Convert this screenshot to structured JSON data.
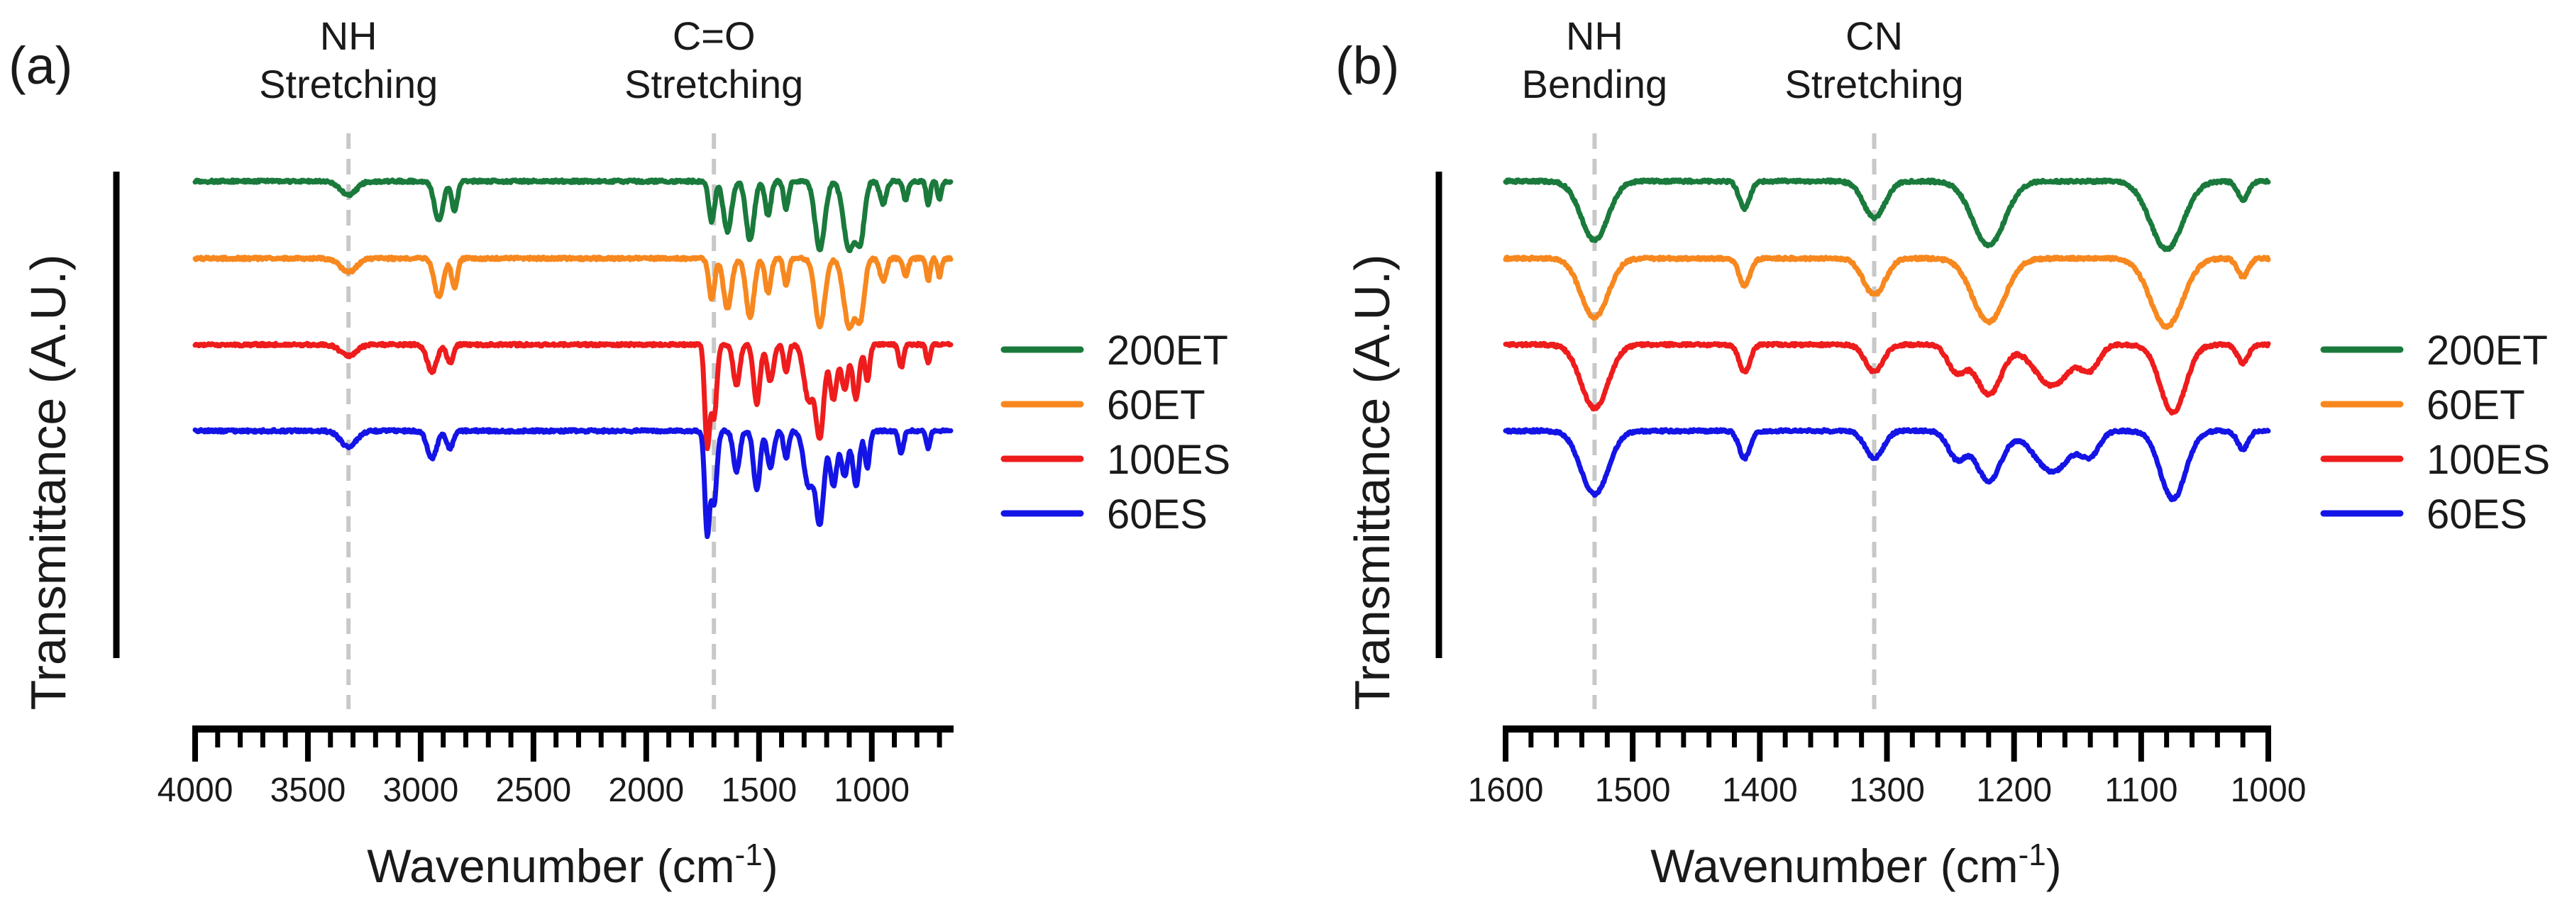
{
  "chart_data": [
    {
      "type": "line",
      "panel_label": "(a)",
      "xlabel_main": "Wavenumber (cm",
      "xlabel_sup": "-1",
      "xlabel_end": ")",
      "ylabel": "Transmittance (A.U.)",
      "xlim": [
        4000,
        650
      ],
      "x_reversed": true,
      "major_ticks": [
        4000,
        3500,
        3000,
        2500,
        2000,
        1500,
        1000
      ],
      "major_tick_labels": [
        "4000",
        "3500",
        "3000",
        "2500",
        "2000",
        "1500",
        "1000"
      ],
      "minor_tick_step": 100,
      "grid": false,
      "annotations": [
        {
          "x": 3320,
          "line1": "NH",
          "line2": "Stretching"
        },
        {
          "x": 1700,
          "line1": "C=O",
          "line2": "Stretching"
        }
      ],
      "legend_position": "right",
      "series": [
        {
          "name": "200ET",
          "color": "#1a7a3c",
          "baseline": 0.04,
          "feature_scale": 1.0,
          "features": [
            [
              3320,
              0.03,
              50
            ],
            [
              2920,
              0.085,
              28
            ],
            [
              2850,
              0.065,
              18
            ],
            [
              1710,
              0.09,
              18
            ],
            [
              1640,
              0.11,
              25
            ],
            [
              1540,
              0.13,
              25
            ],
            [
              1460,
              0.075,
              18
            ],
            [
              1380,
              0.06,
              15
            ],
            [
              1230,
              0.15,
              30
            ],
            [
              1100,
              0.15,
              35
            ],
            [
              1050,
              0.12,
              25
            ],
            [
              950,
              0.05,
              20
            ],
            [
              850,
              0.04,
              15
            ],
            [
              750,
              0.05,
              12
            ],
            [
              700,
              0.04,
              12
            ]
          ]
        },
        {
          "name": "60ET",
          "color": "#f7881f",
          "baseline": 0.21,
          "feature_scale": 1.0,
          "features": [
            [
              3320,
              0.03,
              50
            ],
            [
              2920,
              0.085,
              28
            ],
            [
              2850,
              0.065,
              18
            ],
            [
              1710,
              0.09,
              18
            ],
            [
              1640,
              0.11,
              25
            ],
            [
              1540,
              0.13,
              25
            ],
            [
              1460,
              0.075,
              18
            ],
            [
              1380,
              0.06,
              15
            ],
            [
              1230,
              0.15,
              30
            ],
            [
              1100,
              0.15,
              35
            ],
            [
              1050,
              0.12,
              25
            ],
            [
              950,
              0.05,
              20
            ],
            [
              850,
              0.04,
              15
            ],
            [
              750,
              0.05,
              12
            ],
            [
              700,
              0.04,
              12
            ]
          ]
        },
        {
          "name": "100ES",
          "color": "#ee1c1c",
          "baseline": 0.4,
          "feature_scale": 1.0,
          "features": [
            [
              3320,
              0.025,
              50
            ],
            [
              2950,
              0.06,
              30
            ],
            [
              2870,
              0.04,
              20
            ],
            [
              1730,
              0.22,
              15
            ],
            [
              1700,
              0.16,
              18
            ],
            [
              1600,
              0.09,
              20
            ],
            [
              1510,
              0.13,
              20
            ],
            [
              1450,
              0.08,
              20
            ],
            [
              1380,
              0.06,
              15
            ],
            [
              1280,
              0.12,
              30
            ],
            [
              1230,
              0.2,
              25
            ],
            [
              1170,
              0.12,
              22
            ],
            [
              1120,
              0.1,
              20
            ],
            [
              1070,
              0.12,
              20
            ],
            [
              1020,
              0.08,
              15
            ],
            [
              870,
              0.05,
              15
            ],
            [
              750,
              0.04,
              12
            ]
          ]
        },
        {
          "name": "60ES",
          "color": "#1414e6",
          "baseline": 0.59,
          "feature_scale": 1.0,
          "features": [
            [
              3320,
              0.035,
              50
            ],
            [
              2950,
              0.06,
              30
            ],
            [
              2870,
              0.04,
              20
            ],
            [
              1730,
              0.22,
              15
            ],
            [
              1700,
              0.16,
              18
            ],
            [
              1600,
              0.09,
              20
            ],
            [
              1510,
              0.13,
              20
            ],
            [
              1450,
              0.08,
              20
            ],
            [
              1380,
              0.06,
              15
            ],
            [
              1280,
              0.12,
              30
            ],
            [
              1230,
              0.2,
              25
            ],
            [
              1170,
              0.12,
              22
            ],
            [
              1120,
              0.1,
              20
            ],
            [
              1070,
              0.12,
              20
            ],
            [
              1020,
              0.08,
              15
            ],
            [
              870,
              0.05,
              15
            ],
            [
              750,
              0.04,
              12
            ]
          ]
        }
      ]
    },
    {
      "type": "line",
      "panel_label": "(b)",
      "xlabel_main": "Wavenumber (cm",
      "xlabel_sup": "-1",
      "xlabel_end": ")",
      "ylabel": "Transmittance (A.U.)",
      "xlim": [
        1600,
        1000
      ],
      "x_reversed": true,
      "major_ticks": [
        1600,
        1500,
        1400,
        1300,
        1200,
        1100,
        1000
      ],
      "major_tick_labels": [
        "1600",
        "1500",
        "1400",
        "1300",
        "1200",
        "1100",
        "1000"
      ],
      "minor_tick_step": 20,
      "grid": false,
      "annotations": [
        {
          "x": 1530,
          "line1": "NH",
          "line2": "Bending"
        },
        {
          "x": 1310,
          "line1": "CN",
          "line2": "Stretching"
        }
      ],
      "legend_position": "right",
      "series": [
        {
          "name": "200ET",
          "color": "#1a7a3c",
          "baseline": 0.04,
          "feature_scale": 1.0,
          "features": [
            [
              1530,
              0.13,
              15
            ],
            [
              1412,
              0.06,
              6
            ],
            [
              1310,
              0.08,
              12
            ],
            [
              1220,
              0.14,
              18
            ],
            [
              1080,
              0.15,
              18
            ],
            [
              1020,
              0.04,
              6
            ]
          ]
        },
        {
          "name": "60ET",
          "color": "#f7881f",
          "baseline": 0.21,
          "feature_scale": 1.0,
          "features": [
            [
              1530,
              0.13,
              15
            ],
            [
              1412,
              0.06,
              6
            ],
            [
              1310,
              0.08,
              12
            ],
            [
              1220,
              0.14,
              18
            ],
            [
              1080,
              0.15,
              18
            ],
            [
              1020,
              0.04,
              6
            ]
          ]
        },
        {
          "name": "100ES",
          "color": "#ee1c1c",
          "baseline": 0.4,
          "feature_scale": 1.0,
          "features": [
            [
              1530,
              0.14,
              15
            ],
            [
              1412,
              0.06,
              6
            ],
            [
              1310,
              0.06,
              10
            ],
            [
              1245,
              0.06,
              10
            ],
            [
              1220,
              0.11,
              14
            ],
            [
              1170,
              0.09,
              20
            ],
            [
              1140,
              0.05,
              10
            ],
            [
              1075,
              0.15,
              14
            ],
            [
              1020,
              0.04,
              6
            ]
          ]
        },
        {
          "name": "60ES",
          "color": "#1414e6",
          "baseline": 0.59,
          "feature_scale": 1.0,
          "features": [
            [
              1530,
              0.14,
              15
            ],
            [
              1412,
              0.06,
              6
            ],
            [
              1310,
              0.06,
              10
            ],
            [
              1245,
              0.06,
              10
            ],
            [
              1220,
              0.11,
              14
            ],
            [
              1170,
              0.09,
              20
            ],
            [
              1140,
              0.05,
              10
            ],
            [
              1075,
              0.15,
              14
            ],
            [
              1020,
              0.04,
              6
            ]
          ]
        }
      ]
    }
  ]
}
